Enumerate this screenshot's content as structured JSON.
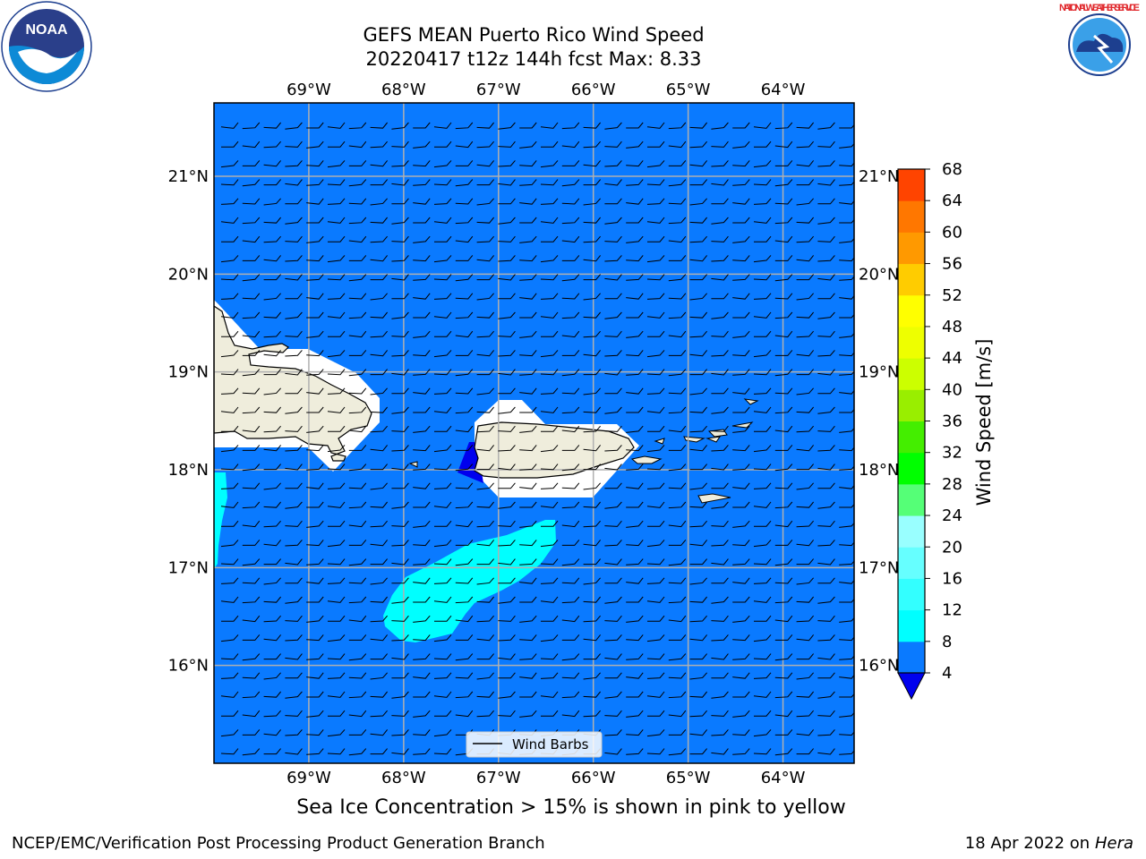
{
  "title": {
    "line1": "GEFS MEAN Puerto Rico Wind Speed",
    "line2": "20220417 t12z 144h fcst   Max: 8.33"
  },
  "logos": [
    {
      "name": "noaa-logo",
      "text": "NOAA"
    },
    {
      "name": "nws-logo",
      "text": "NATIONAL WEATHER SERVICE"
    }
  ],
  "map": {
    "lon_ticks": [
      "69°W",
      "68°W",
      "67°W",
      "66°W",
      "65°W",
      "64°W"
    ],
    "lat_ticks": [
      "21°N",
      "20°N",
      "19°N",
      "18°N",
      "17°N",
      "16°N"
    ],
    "lon_range": [
      -70,
      -63.25
    ],
    "lat_range": [
      15.0,
      21.75
    ],
    "ocean_color": "#0a7aff",
    "land_color": "#efeddc",
    "wind_barb_direction": "easterly",
    "legend_label": "Wind Barbs"
  },
  "colorbar": {
    "label": "Wind Speed [m/s]",
    "ticks": [
      "4",
      "8",
      "12",
      "16",
      "20",
      "24",
      "28",
      "32",
      "36",
      "40",
      "44",
      "48",
      "52",
      "56",
      "60",
      "64",
      "68"
    ],
    "colors": [
      "#0a7aff",
      "#00ffff",
      "#33ffff",
      "#66ffff",
      "#99ffff",
      "#55ff77",
      "#00ff00",
      "#44ee00",
      "#99ee00",
      "#ccff00",
      "#eeff00",
      "#ffff00",
      "#ffcc00",
      "#ff9900",
      "#ff7700",
      "#ff4400",
      "#ff0000"
    ],
    "under_color": "#0000ee"
  },
  "caption": "Sea Ice Concentration > 15% is shown in pink to yellow",
  "footer": {
    "left": "NCEP/EMC/Verification Post Processing Product Generation Branch",
    "right_prefix": "18 Apr 2022 on ",
    "right_host": "Hera"
  }
}
